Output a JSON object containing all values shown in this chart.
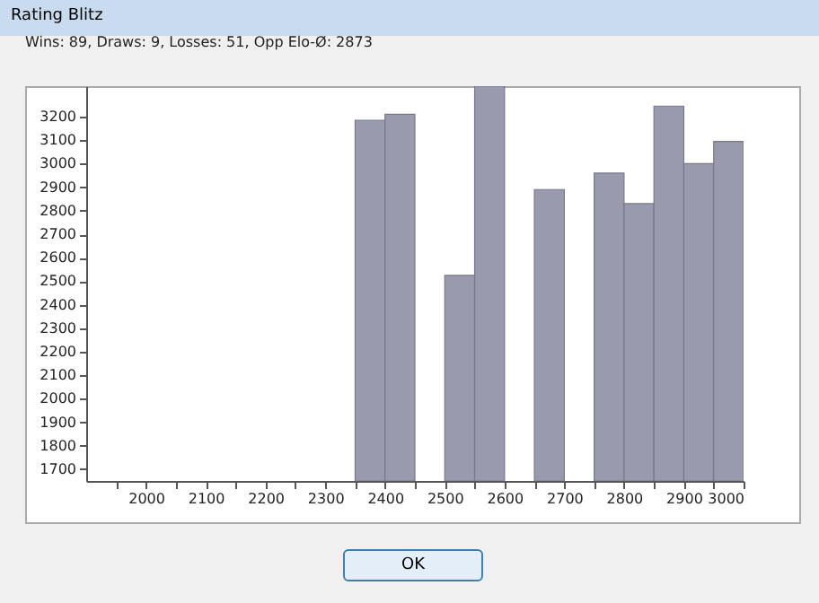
{
  "chart_data": {
    "type": "histogram",
    "title": "Rating Blitz",
    "subtitle": "Wins: 89, Draws: 9, Losses: 51, Opp Elo-Ø: 2873",
    "annotations": [
      "OK"
    ],
    "bins": [
      2350,
      2400,
      2450,
      2500,
      2550,
      2600,
      2650,
      2700,
      2750,
      2800,
      2850,
      2900,
      2950,
      3000
    ],
    "values": [
      3185,
      3210,
      null,
      2525,
      3330,
      null,
      2890,
      null,
      2960,
      2830,
      3245,
      3000,
      3095
    ],
    "color": "#9a9aae",
    "xlim": [
      1900,
      3000
    ],
    "xticks": [
      {
        "value": 1950,
        "label": null
      },
      2000,
      {
        "value": 2050,
        "label": null
      },
      2100,
      {
        "value": 2150,
        "label": null
      },
      2200,
      {
        "value": 2250,
        "label": null
      },
      2300,
      {
        "value": 2350,
        "label": null
      },
      2400,
      {
        "value": 2450,
        "label": null
      },
      2500,
      {
        "value": 2550,
        "label": null
      },
      2600,
      {
        "value": 2650,
        "label": null
      },
      2700,
      {
        "value": 2750,
        "label": null
      },
      2800,
      {
        "value": 2850,
        "label": null
      },
      2900,
      {
        "value": 2950,
        "label": null
      },
      3000
    ],
    "ylim": [
      1650,
      3330
    ],
    "yticks": [
      1700,
      1800,
      1900,
      2000,
      2100,
      2200,
      2300,
      2400,
      2500,
      2600,
      2700,
      2800,
      2900,
      3000,
      3100,
      3200
    ],
    "grid": false
  }
}
